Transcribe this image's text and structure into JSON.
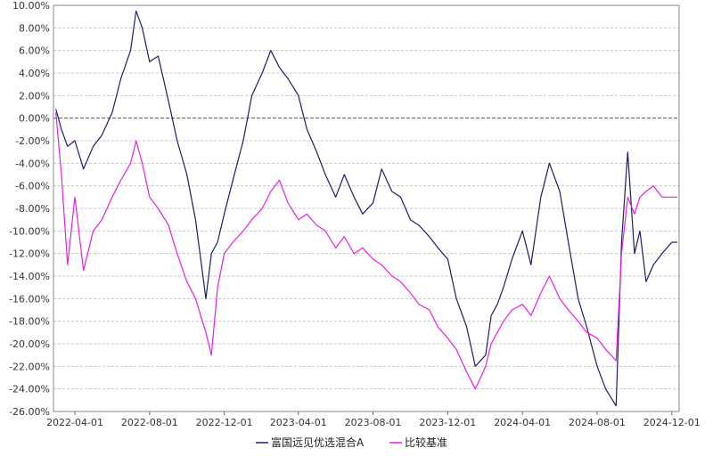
{
  "chart_data": {
    "type": "line",
    "title": "",
    "xlabel": "",
    "ylabel": "",
    "ylim": [
      -26,
      10
    ],
    "y_ticks": [
      "10.00%",
      "8.00%",
      "6.00%",
      "4.00%",
      "2.00%",
      "0.00%",
      "-2.00%",
      "-4.00%",
      "-6.00%",
      "-8.00%",
      "-10.00%",
      "-12.00%",
      "-14.00%",
      "-16.00%",
      "-18.00%",
      "-20.00%",
      "-22.00%",
      "-24.00%",
      "-26.00%"
    ],
    "x_ticks": [
      "2022-04-01",
      "2022-08-01",
      "2022-12-01",
      "2023-04-01",
      "2023-08-01",
      "2023-12-01",
      "2024-04-01",
      "2024-08-01",
      "2024-12-01"
    ],
    "grid": true,
    "legend_position": "bottom",
    "series": [
      {
        "name": "富国远见优选混合A",
        "color": "#1a1f6b",
        "x": [
          "2022-03-01",
          "2022-03-10",
          "2022-03-20",
          "2022-04-01",
          "2022-04-15",
          "2022-05-01",
          "2022-05-15",
          "2022-06-01",
          "2022-06-15",
          "2022-07-01",
          "2022-07-10",
          "2022-07-20",
          "2022-08-01",
          "2022-08-15",
          "2022-09-01",
          "2022-09-15",
          "2022-10-01",
          "2022-10-15",
          "2022-11-01",
          "2022-11-10",
          "2022-11-20",
          "2022-12-01",
          "2022-12-15",
          "2023-01-01",
          "2023-01-15",
          "2023-02-01",
          "2023-02-15",
          "2023-03-01",
          "2023-03-15",
          "2023-04-01",
          "2023-04-15",
          "2023-05-01",
          "2023-05-15",
          "2023-06-01",
          "2023-06-15",
          "2023-07-01",
          "2023-07-15",
          "2023-08-01",
          "2023-08-15",
          "2023-09-01",
          "2023-09-15",
          "2023-10-01",
          "2023-10-15",
          "2023-11-01",
          "2023-11-15",
          "2023-12-01",
          "2023-12-15",
          "2024-01-01",
          "2024-01-15",
          "2024-02-01",
          "2024-02-10",
          "2024-02-20",
          "2024-03-01",
          "2024-03-15",
          "2024-04-01",
          "2024-04-15",
          "2024-05-01",
          "2024-05-15",
          "2024-06-01",
          "2024-06-15",
          "2024-07-01",
          "2024-07-15",
          "2024-08-01",
          "2024-08-15",
          "2024-09-01",
          "2024-09-10",
          "2024-09-20",
          "2024-10-01",
          "2024-10-10",
          "2024-10-20",
          "2024-11-01",
          "2024-11-15",
          "2024-12-01",
          "2024-12-10"
        ],
        "values": [
          0.8,
          -1.0,
          -2.5,
          -2.0,
          -4.5,
          -2.5,
          -1.5,
          0.5,
          3.5,
          6.0,
          9.5,
          8.0,
          5.0,
          5.5,
          1.5,
          -2.0,
          -5.0,
          -9.0,
          -16.0,
          -12.0,
          -11.0,
          -8.5,
          -5.5,
          -2.0,
          2.0,
          4.0,
          6.0,
          4.5,
          3.5,
          2.0,
          -1.0,
          -3.0,
          -5.0,
          -7.0,
          -5.0,
          -7.0,
          -8.5,
          -7.5,
          -4.5,
          -6.5,
          -7.0,
          -9.0,
          -9.5,
          -10.5,
          -11.5,
          -12.5,
          -16.0,
          -18.5,
          -22.0,
          -21.0,
          -17.5,
          -16.5,
          -15.0,
          -12.5,
          -10.0,
          -13.0,
          -7.0,
          -4.0,
          -6.5,
          -11.0,
          -16.0,
          -18.5,
          -22.0,
          -24.0,
          -25.5,
          -11.0,
          -3.0,
          -12.0,
          -10.0,
          -14.5,
          -13.0,
          -12.0,
          -11.0,
          -11.0
        ]
      },
      {
        "name": "比较基准",
        "color": "#e81ee8",
        "x": [
          "2022-03-01",
          "2022-03-10",
          "2022-03-20",
          "2022-04-01",
          "2022-04-15",
          "2022-05-01",
          "2022-05-15",
          "2022-06-01",
          "2022-06-15",
          "2022-07-01",
          "2022-07-10",
          "2022-07-20",
          "2022-08-01",
          "2022-08-15",
          "2022-09-01",
          "2022-09-15",
          "2022-10-01",
          "2022-10-15",
          "2022-11-01",
          "2022-11-10",
          "2022-11-20",
          "2022-12-01",
          "2022-12-15",
          "2023-01-01",
          "2023-01-15",
          "2023-02-01",
          "2023-02-15",
          "2023-03-01",
          "2023-03-15",
          "2023-04-01",
          "2023-04-15",
          "2023-05-01",
          "2023-05-15",
          "2023-06-01",
          "2023-06-15",
          "2023-07-01",
          "2023-07-15",
          "2023-08-01",
          "2023-08-15",
          "2023-09-01",
          "2023-09-15",
          "2023-10-01",
          "2023-10-15",
          "2023-11-01",
          "2023-11-15",
          "2023-12-01",
          "2023-12-15",
          "2024-01-01",
          "2024-01-15",
          "2024-02-01",
          "2024-02-10",
          "2024-02-20",
          "2024-03-01",
          "2024-03-15",
          "2024-04-01",
          "2024-04-15",
          "2024-05-01",
          "2024-05-15",
          "2024-06-01",
          "2024-06-15",
          "2024-07-01",
          "2024-07-15",
          "2024-08-01",
          "2024-08-15",
          "2024-09-01",
          "2024-09-10",
          "2024-09-20",
          "2024-10-01",
          "2024-10-10",
          "2024-10-20",
          "2024-11-01",
          "2024-11-15",
          "2024-12-01",
          "2024-12-10"
        ],
        "values": [
          0.5,
          -5.0,
          -13.0,
          -7.0,
          -13.5,
          -10.0,
          -9.0,
          -7.0,
          -5.5,
          -4.0,
          -2.0,
          -4.0,
          -7.0,
          -8.0,
          -9.5,
          -12.0,
          -14.5,
          -16.0,
          -19.0,
          -21.0,
          -15.0,
          -12.0,
          -11.0,
          -10.0,
          -9.0,
          -8.0,
          -6.5,
          -5.5,
          -7.5,
          -9.0,
          -8.5,
          -9.5,
          -10.0,
          -11.5,
          -10.5,
          -12.0,
          -11.5,
          -12.5,
          -13.0,
          -14.0,
          -14.5,
          -15.5,
          -16.5,
          -17.0,
          -18.5,
          -19.5,
          -20.5,
          -22.5,
          -24.0,
          -22.0,
          -20.0,
          -19.0,
          -18.0,
          -17.0,
          -16.5,
          -17.5,
          -15.5,
          -14.0,
          -16.0,
          -17.0,
          -18.0,
          -19.0,
          -19.5,
          -20.5,
          -21.5,
          -12.0,
          -7.0,
          -8.5,
          -7.0,
          -6.5,
          -6.0,
          -7.0,
          -7.0,
          -7.0
        ]
      }
    ]
  }
}
